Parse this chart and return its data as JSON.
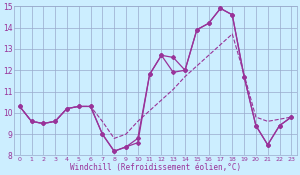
{
  "bg_color": "#cceeff",
  "line_color": "#993399",
  "grid_color": "#99aacc",
  "xlabel": "Windchill (Refroidissement éolien,°C)",
  "ylim": [
    8,
    15
  ],
  "xlim": [
    -0.5,
    23.5
  ],
  "yticks": [
    8,
    9,
    10,
    11,
    12,
    13,
    14,
    15
  ],
  "xticks": [
    0,
    1,
    2,
    3,
    4,
    5,
    6,
    7,
    8,
    9,
    10,
    11,
    12,
    13,
    14,
    15,
    16,
    17,
    18,
    19,
    20,
    21,
    22,
    23
  ],
  "series1_x": [
    0,
    1,
    2,
    3,
    4,
    5,
    6,
    7,
    8,
    9,
    10,
    11,
    12,
    13,
    14,
    15,
    16,
    17,
    18,
    19,
    20,
    21,
    22,
    23
  ],
  "series1_y": [
    10.3,
    9.6,
    9.5,
    9.6,
    10.2,
    10.3,
    10.3,
    9.0,
    8.2,
    8.4,
    8.6,
    11.8,
    12.7,
    12.6,
    12.0,
    13.9,
    14.2,
    14.9,
    14.6,
    11.7,
    9.4,
    8.5,
    9.4,
    9.8
  ],
  "series2_x": [
    0,
    1,
    2,
    3,
    4,
    5,
    6,
    7,
    8,
    9,
    10,
    11,
    12,
    13,
    14,
    15,
    16,
    17,
    18,
    19,
    20,
    21,
    22,
    23
  ],
  "series2_y": [
    10.3,
    9.6,
    9.5,
    9.6,
    10.2,
    10.3,
    10.3,
    9.6,
    8.8,
    9.0,
    9.6,
    10.1,
    10.6,
    11.1,
    11.7,
    12.2,
    12.7,
    13.2,
    13.7,
    11.8,
    9.8,
    9.6,
    9.7,
    9.8
  ],
  "series3_x": [
    0,
    1,
    2,
    3,
    4,
    5,
    6,
    7,
    8,
    9,
    10,
    11,
    12,
    13,
    14,
    15,
    16,
    17,
    18,
    19,
    20,
    21,
    22,
    23
  ],
  "series3_y": [
    10.3,
    9.6,
    9.5,
    9.6,
    10.2,
    10.3,
    10.3,
    9.0,
    8.2,
    8.4,
    8.8,
    11.8,
    12.7,
    11.9,
    12.0,
    13.9,
    14.2,
    14.9,
    14.6,
    11.7,
    9.4,
    8.5,
    9.4,
    9.8
  ],
  "figwidth": 3.0,
  "figheight": 1.75,
  "dpi": 100
}
